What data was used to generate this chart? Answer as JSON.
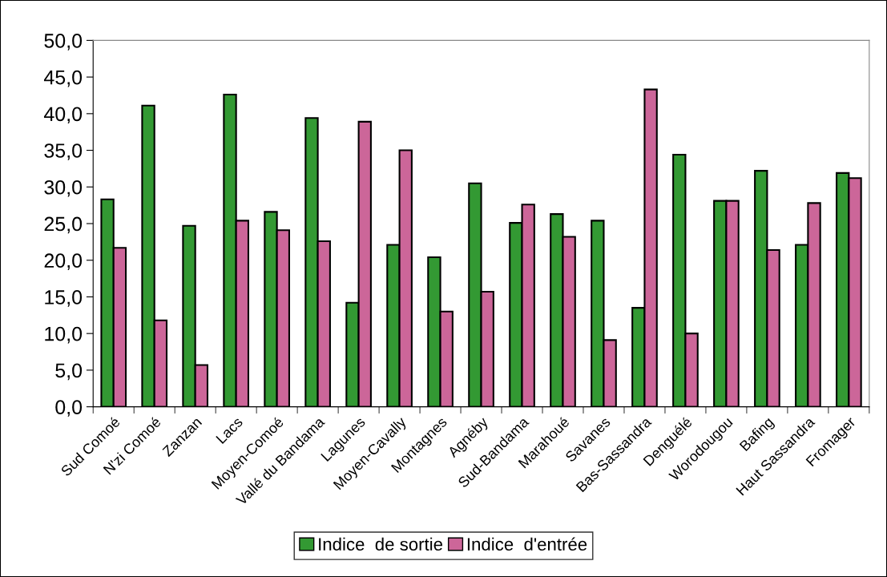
{
  "chart_data": {
    "type": "bar",
    "categories": [
      "Sud Comoé",
      "N'zi Comoé",
      "Zanzan",
      "Lacs",
      "Moyen-Comoé",
      "Vallé du Bandama",
      "Lagunes",
      "Moyen-Cavally",
      "Montagnes",
      "Agnéby",
      "Sud-Bandama",
      "Marahoué",
      "Savanes",
      "Bas-Sassandra",
      "Denguélé",
      "Worodougou",
      "Bafing",
      "Haut Sassandra",
      "Fromager"
    ],
    "series": [
      {
        "name": "Indice  de sortie",
        "color": "#339933",
        "values": [
          28.3,
          41.1,
          24.7,
          42.6,
          26.6,
          39.4,
          14.2,
          22.1,
          20.4,
          30.5,
          25.1,
          26.3,
          25.4,
          13.5,
          34.4,
          28.1,
          32.2,
          22.1,
          31.9
        ]
      },
      {
        "name": "Indice  d'entrée",
        "color": "#cc6699",
        "values": [
          21.7,
          11.8,
          5.7,
          25.4,
          24.1,
          22.6,
          38.9,
          35.0,
          13.0,
          15.7,
          27.6,
          23.2,
          9.1,
          43.3,
          10.0,
          28.1,
          21.4,
          27.8,
          31.2
        ]
      }
    ],
    "ylim": [
      0,
      50
    ],
    "yticks": [
      {
        "value": 0,
        "label": "0,0"
      },
      {
        "value": 5,
        "label": "5,0"
      },
      {
        "value": 10,
        "label": "10,0"
      },
      {
        "value": 15,
        "label": "15,0"
      },
      {
        "value": 20,
        "label": "20,0"
      },
      {
        "value": 25,
        "label": "25,0"
      },
      {
        "value": 30,
        "label": "30,0"
      },
      {
        "value": 35,
        "label": "35,0"
      },
      {
        "value": 40,
        "label": "40,0"
      },
      {
        "value": 45,
        "label": "45,0"
      },
      {
        "value": 50,
        "label": "50,0"
      }
    ],
    "grid": false,
    "legend": "bottom"
  }
}
